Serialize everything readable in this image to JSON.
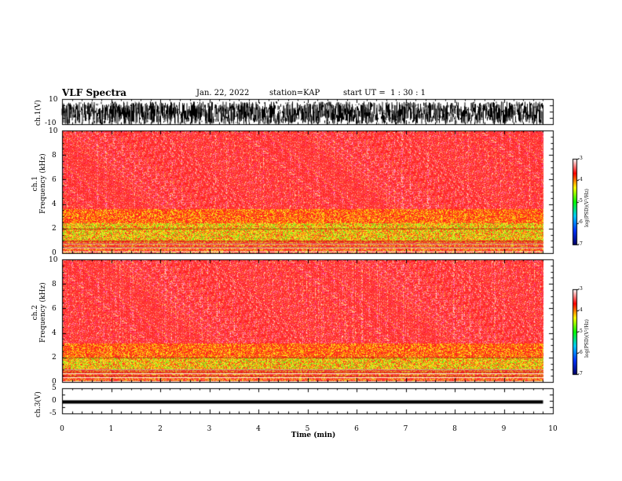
{
  "header": {
    "title": "VLF Spectra",
    "date": "Jan. 22, 2022",
    "station": "station=KAP",
    "start": "start UT =  1 : 30 : 1"
  },
  "chart_data": [
    {
      "type": "line",
      "name": "panel-ch1-waveform",
      "ylabel": "ch.1(V)",
      "ylim": [
        -10,
        10
      ],
      "ytick_labels": [
        "10",
        "-10"
      ],
      "xlim": [
        0,
        10
      ],
      "x_coverage_end": 9.8,
      "series": [
        {
          "name": "ch.1",
          "band_min": -10,
          "band_max": 8,
          "color": "#000000"
        }
      ]
    },
    {
      "type": "heatmap",
      "name": "panel-ch1-spectrogram",
      "ylabel": "ch.1\nFrequency (kHz)",
      "ylim": [
        0,
        10
      ],
      "ytick_labels": [
        "0",
        "2",
        "4",
        "6",
        "8",
        "10"
      ],
      "xlim": [
        0,
        10
      ],
      "x_coverage_end": 9.8,
      "active_band_top_khz": 3.0,
      "colorbar": {
        "label": "log(PSD)(V²/Hz)",
        "range": [
          -7,
          -3
        ],
        "tick_labels": [
          "-3",
          "-4",
          "-5",
          "-6",
          "-7"
        ],
        "colors": [
          "#000066",
          "#0033ff",
          "#00ccff",
          "#00ff00",
          "#ffff00",
          "#ff0000",
          "#ffffff"
        ]
      }
    },
    {
      "type": "heatmap",
      "name": "panel-ch2-spectrogram",
      "ylabel": "ch.2\nFrequency (kHz)",
      "ylim": [
        0,
        10
      ],
      "ytick_labels": [
        "0",
        "2",
        "4",
        "6",
        "8",
        "10"
      ],
      "xlim": [
        0,
        10
      ],
      "x_coverage_end": 9.8,
      "active_band_top_khz": 2.5,
      "colorbar": {
        "label": "log(PSD)(V²/Hz)",
        "range": [
          -7,
          -3
        ],
        "tick_labels": [
          "-3",
          "-4",
          "-5",
          "-6",
          "-7"
        ],
        "colors": [
          "#000066",
          "#0033ff",
          "#00ccff",
          "#00ff00",
          "#ffff00",
          "#ff0000",
          "#ffffff"
        ]
      }
    },
    {
      "type": "line",
      "name": "panel-ch3-waveform",
      "ylabel": "ch.3(V)",
      "ylim": [
        -5,
        5
      ],
      "ytick_labels": [
        "5",
        "0",
        "-5"
      ],
      "xlim": [
        0,
        10
      ],
      "x_coverage_end": 9.8,
      "series": [
        {
          "name": "ch.3",
          "band_min": -1.1,
          "band_max": 0.2,
          "color": "#000000"
        }
      ],
      "xlabel": "Time (min)",
      "xtick_labels": [
        "0",
        "1",
        "2",
        "3",
        "4",
        "5",
        "6",
        "7",
        "8",
        "9",
        "10"
      ]
    }
  ]
}
